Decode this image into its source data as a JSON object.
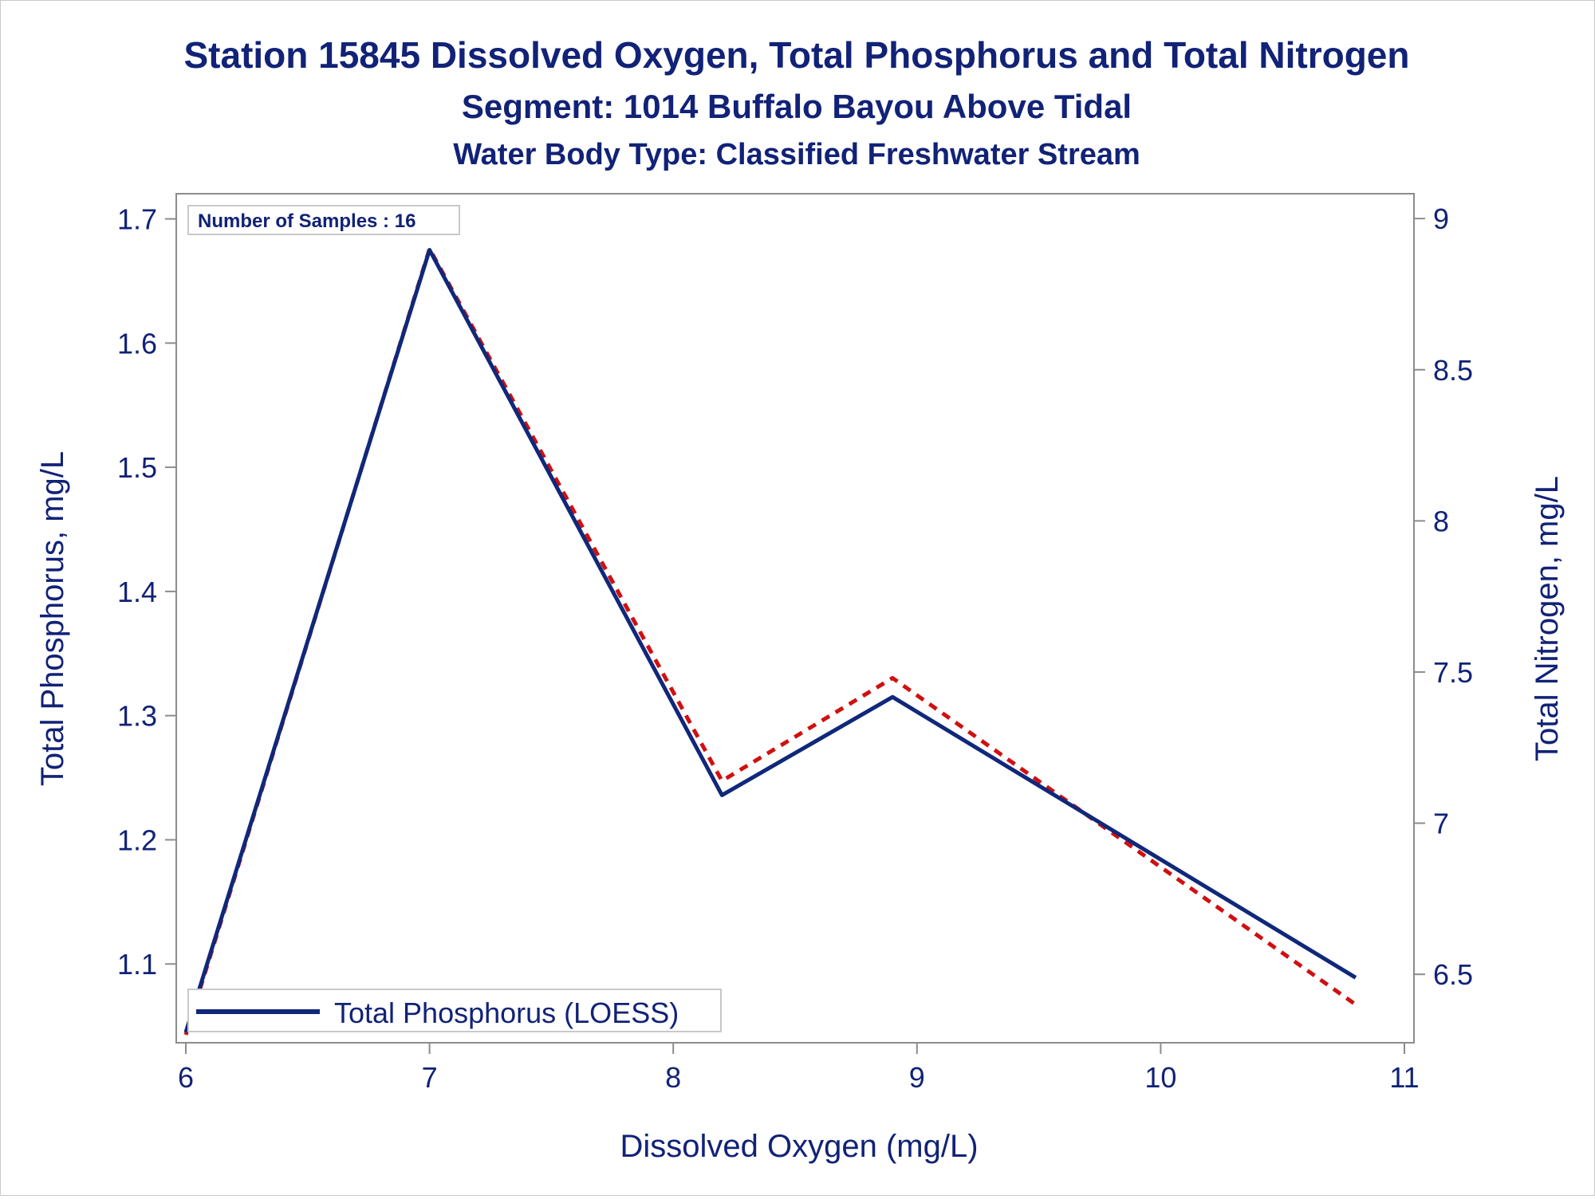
{
  "colors": {
    "text": "#112277",
    "phosphorus_line": "#10287a",
    "nitrogen_line": "#d01010",
    "axis": "#8c8c8c",
    "legend_border": "#c8c8c8"
  },
  "chart_data": {
    "type": "line",
    "title": "Station 15845  Dissolved Oxygen, Total Phosphorus and Total Nitrogen",
    "subtitle": "Segment: 1014  Buffalo Bayou Above Tidal",
    "subtitle2": "Water Body Type: Classified Freshwater Stream",
    "xlabel": "Dissolved Oxygen (mg/L)",
    "ylabel": "Total Phosphorus, mg/L",
    "y2label": "Total Nitrogen, mg/L",
    "xlim": [
      6,
      11
    ],
    "ylim": [
      1.043,
      1.71
    ],
    "y2lim": [
      6.3,
      9.04
    ],
    "xticks": [
      6,
      7,
      8,
      9,
      10,
      11
    ],
    "yticks": [
      1.1,
      1.2,
      1.3,
      1.4,
      1.5,
      1.6,
      1.7
    ],
    "y2ticks": [
      6.5,
      7,
      7.5,
      8,
      8.5,
      9
    ],
    "xtick_labels": [
      "6",
      "7",
      "8",
      "9",
      "10",
      "11"
    ],
    "ytick_labels": [
      "1.1",
      "1.2",
      "1.3",
      "1.4",
      "1.5",
      "1.6",
      "1.7"
    ],
    "y2tick_labels": [
      "6.5",
      "7",
      "7.5",
      "8",
      "8.5",
      "9"
    ],
    "annotation": "Number of Samples : 16",
    "legend": {
      "position": "bottom-left",
      "entries": [
        "Total Phosphorus (LOESS)"
      ]
    },
    "grid": false,
    "series": [
      {
        "name": "Total Phosphorus (LOESS)",
        "axis": "left",
        "style": "solid",
        "x": [
          6.0,
          7.0,
          8.2,
          8.9,
          10.8
        ],
        "y": [
          1.045,
          1.675,
          1.236,
          1.315,
          1.089
        ]
      },
      {
        "axis": "right",
        "style": "dashed",
        "x": [
          6.0,
          7.0,
          8.2,
          8.9,
          10.8
        ],
        "y": [
          6.3,
          8.9,
          7.14,
          7.48,
          6.4
        ]
      }
    ]
  }
}
